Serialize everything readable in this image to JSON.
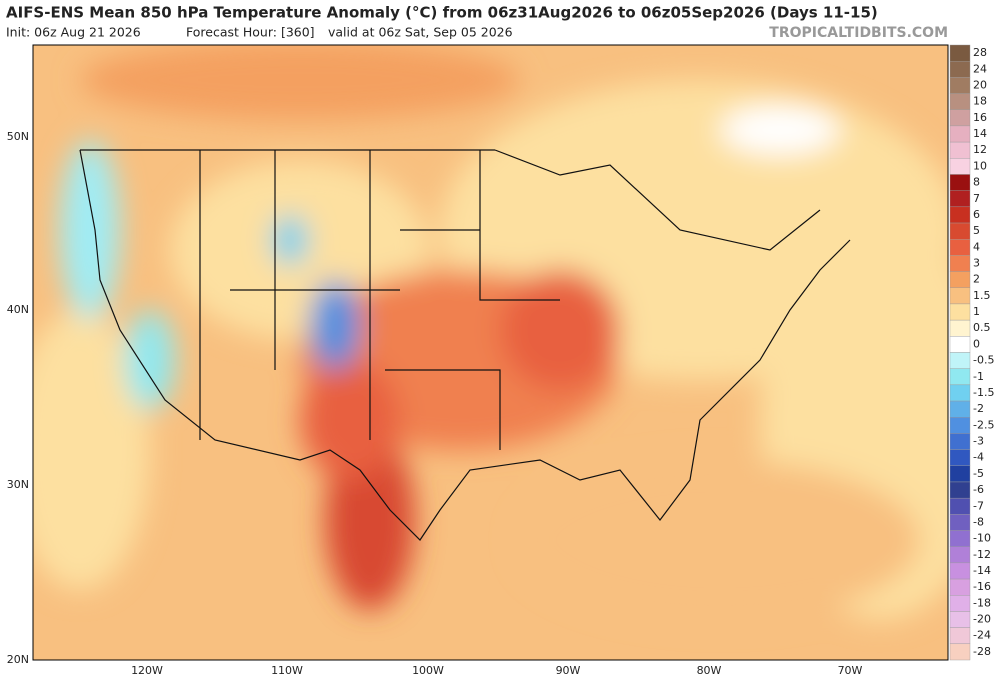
{
  "header": {
    "title": "AIFS-ENS Mean 850 hPa Temperature Anomaly (°C) from 06z31Aug2026 to 06z05Sep2026 (Days 11-15)",
    "init": "Init: 06z Aug 21 2026",
    "forecast_hour": "Forecast Hour: [360]",
    "valid": "valid at 06z Sat, Sep 05 2026",
    "brand": "TROPICALTIDBITS.COM"
  },
  "map": {
    "lat_labels": [
      "50N",
      "40N",
      "30N",
      "20N"
    ],
    "lon_labels": [
      "120W",
      "110W",
      "100W",
      "90W",
      "80W",
      "70W"
    ]
  },
  "colorbar": {
    "entries": [
      {
        "label": "28",
        "color": "#7a5a40"
      },
      {
        "label": "24",
        "color": "#8c6a50"
      },
      {
        "label": "20",
        "color": "#a07c62"
      },
      {
        "label": "18",
        "color": "#b89080"
      },
      {
        "label": "16",
        "color": "#cfa0a0"
      },
      {
        "label": "14",
        "color": "#e6b0c0"
      },
      {
        "label": "12",
        "color": "#f0c0d2"
      },
      {
        "label": "10",
        "color": "#f8d2e2"
      },
      {
        "label": "8",
        "color": "#9a1010"
      },
      {
        "label": "7",
        "color": "#b02020"
      },
      {
        "label": "6",
        "color": "#c83020"
      },
      {
        "label": "5",
        "color": "#d84a30"
      },
      {
        "label": "4",
        "color": "#e86040"
      },
      {
        "label": "3",
        "color": "#f08050"
      },
      {
        "label": "2",
        "color": "#f4a060"
      },
      {
        "label": "1.5",
        "color": "#f8c080"
      },
      {
        "label": "1",
        "color": "#fde0a0"
      },
      {
        "label": "0.5",
        "color": "#fff4d0"
      },
      {
        "label": "0",
        "color": "#ffffff"
      },
      {
        "label": "-0.5",
        "color": "#c0f4f8"
      },
      {
        "label": "-1",
        "color": "#90e8f0"
      },
      {
        "label": "-1.5",
        "color": "#70d0f0"
      },
      {
        "label": "-2",
        "color": "#60b0e8"
      },
      {
        "label": "-2.5",
        "color": "#5090e0"
      },
      {
        "label": "-3",
        "color": "#4070d0"
      },
      {
        "label": "-4",
        "color": "#3058c0"
      },
      {
        "label": "-5",
        "color": "#2040a0"
      },
      {
        "label": "-6",
        "color": "#304090"
      },
      {
        "label": "-7",
        "color": "#5050b0"
      },
      {
        "label": "-8",
        "color": "#7060c0"
      },
      {
        "label": "-10",
        "color": "#9070d0"
      },
      {
        "label": "-12",
        "color": "#b080d8"
      },
      {
        "label": "-14",
        "color": "#c890e0"
      },
      {
        "label": "-16",
        "color": "#d8a0e0"
      },
      {
        "label": "-18",
        "color": "#e0b0e8"
      },
      {
        "label": "-20",
        "color": "#e8c0e8"
      },
      {
        "label": "-24",
        "color": "#f0c8d8"
      },
      {
        "label": "-28",
        "color": "#f8d0c0"
      }
    ]
  }
}
